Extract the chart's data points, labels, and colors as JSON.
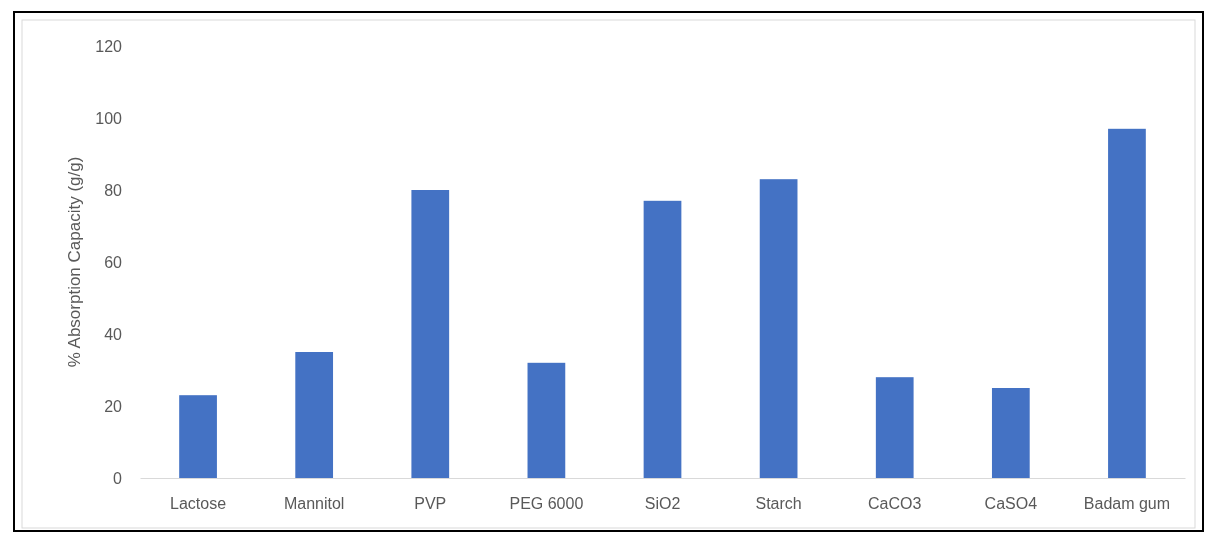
{
  "chart_data": {
    "type": "bar",
    "ylabel": "% Absorption Capacity (g/g)",
    "categories": [
      "Lactose",
      "Mannitol",
      "PVP",
      "PEG 6000",
      "SiO2",
      "Starch",
      "CaCO3",
      "CaSO4",
      "Badam gum"
    ],
    "values": [
      23,
      35,
      80,
      32,
      77,
      83,
      28,
      25,
      97
    ],
    "color": "#4472c4",
    "ylim": [
      0,
      120
    ],
    "yticks": [
      0,
      20,
      40,
      60,
      80,
      100,
      120
    ],
    "grid": false
  }
}
